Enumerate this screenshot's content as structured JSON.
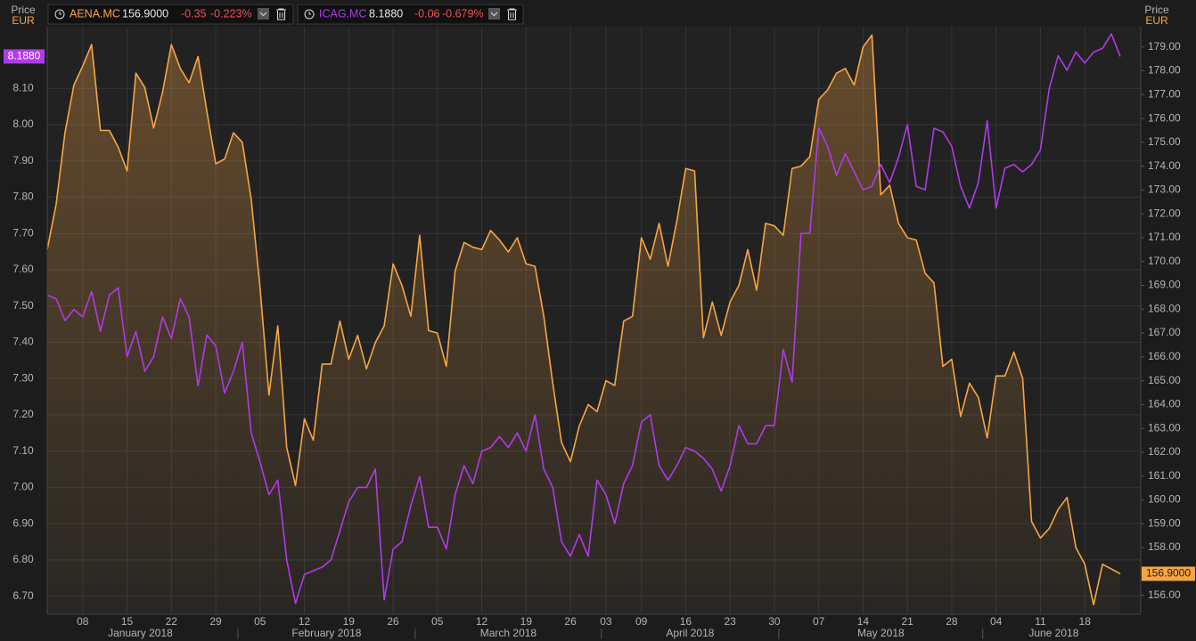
{
  "chart_data": {
    "type": "line",
    "y_label": "Price",
    "y_unit": "EUR",
    "y2_label": "Price",
    "y2_unit": "EUR",
    "x": [
      "2018-01-02",
      "2018-01-03",
      "2018-01-04",
      "2018-01-05",
      "2018-01-08",
      "2018-01-09",
      "2018-01-10",
      "2018-01-11",
      "2018-01-12",
      "2018-01-15",
      "2018-01-16",
      "2018-01-17",
      "2018-01-18",
      "2018-01-19",
      "2018-01-22",
      "2018-01-23",
      "2018-01-24",
      "2018-01-25",
      "2018-01-26",
      "2018-01-29",
      "2018-01-30",
      "2018-01-31",
      "2018-02-01",
      "2018-02-02",
      "2018-02-05",
      "2018-02-06",
      "2018-02-07",
      "2018-02-08",
      "2018-02-09",
      "2018-02-12",
      "2018-02-13",
      "2018-02-14",
      "2018-02-15",
      "2018-02-16",
      "2018-02-19",
      "2018-02-20",
      "2018-02-21",
      "2018-02-22",
      "2018-02-23",
      "2018-02-26",
      "2018-02-27",
      "2018-02-28",
      "2018-03-01",
      "2018-03-02",
      "2018-03-05",
      "2018-03-06",
      "2018-03-07",
      "2018-03-08",
      "2018-03-09",
      "2018-03-12",
      "2018-03-13",
      "2018-03-14",
      "2018-03-15",
      "2018-03-16",
      "2018-03-19",
      "2018-03-20",
      "2018-03-21",
      "2018-03-22",
      "2018-03-23",
      "2018-03-26",
      "2018-03-27",
      "2018-03-28",
      "2018-03-29",
      "2018-04-03",
      "2018-04-04",
      "2018-04-05",
      "2018-04-06",
      "2018-04-09",
      "2018-04-10",
      "2018-04-11",
      "2018-04-12",
      "2018-04-13",
      "2018-04-16",
      "2018-04-17",
      "2018-04-18",
      "2018-04-19",
      "2018-04-20",
      "2018-04-23",
      "2018-04-24",
      "2018-04-25",
      "2018-04-26",
      "2018-04-27",
      "2018-04-30",
      "2018-05-01",
      "2018-05-02",
      "2018-05-03",
      "2018-05-04",
      "2018-05-07",
      "2018-05-08",
      "2018-05-09",
      "2018-05-10",
      "2018-05-11",
      "2018-05-14",
      "2018-05-15",
      "2018-05-16",
      "2018-05-17",
      "2018-05-18",
      "2018-05-21",
      "2018-05-22",
      "2018-05-23",
      "2018-05-24",
      "2018-05-25",
      "2018-05-28",
      "2018-05-29",
      "2018-05-30",
      "2018-05-31",
      "2018-06-01",
      "2018-06-04",
      "2018-06-05",
      "2018-06-06",
      "2018-06-07",
      "2018-06-08",
      "2018-06-11",
      "2018-06-12",
      "2018-06-13",
      "2018-06-14",
      "2018-06-15",
      "2018-06-18",
      "2018-06-19",
      "2018-06-20",
      "2018-06-21",
      "2018-06-22"
    ],
    "xticks": [
      {
        "value": "2018-01-08",
        "label": "08"
      },
      {
        "value": "2018-01-15",
        "label": "15"
      },
      {
        "value": "2018-01-22",
        "label": "22"
      },
      {
        "value": "2018-01-29",
        "label": "29"
      },
      {
        "value": "2018-02-05",
        "label": "05"
      },
      {
        "value": "2018-02-12",
        "label": "12"
      },
      {
        "value": "2018-02-19",
        "label": "19"
      },
      {
        "value": "2018-02-26",
        "label": "26"
      },
      {
        "value": "2018-03-05",
        "label": "05"
      },
      {
        "value": "2018-03-12",
        "label": "12"
      },
      {
        "value": "2018-03-19",
        "label": "19"
      },
      {
        "value": "2018-03-26",
        "label": "26"
      },
      {
        "value": "2018-04-03",
        "label": "03"
      },
      {
        "value": "2018-04-09",
        "label": "09"
      },
      {
        "value": "2018-04-16",
        "label": "16"
      },
      {
        "value": "2018-04-23",
        "label": "23"
      },
      {
        "value": "2018-04-30",
        "label": "30"
      },
      {
        "value": "2018-05-07",
        "label": "07"
      },
      {
        "value": "2018-05-14",
        "label": "14"
      },
      {
        "value": "2018-05-21",
        "label": "21"
      },
      {
        "value": "2018-05-28",
        "label": "28"
      },
      {
        "value": "2018-06-04",
        "label": "04"
      },
      {
        "value": "2018-06-11",
        "label": "11"
      },
      {
        "value": "2018-06-18",
        "label": "18"
      }
    ],
    "months": [
      {
        "value": "2018-01",
        "label": "January 2018"
      },
      {
        "value": "2018-02",
        "label": "February 2018"
      },
      {
        "value": "2018-03",
        "label": "March 2018"
      },
      {
        "value": "2018-04",
        "label": "April 2018"
      },
      {
        "value": "2018-05",
        "label": "May 2018"
      },
      {
        "value": "2018-06",
        "label": "June 2018"
      }
    ],
    "ylim": [
      6.65,
      8.27
    ],
    "yticks": [
      {
        "value": 6.7,
        "label": "6.70"
      },
      {
        "value": 6.8,
        "label": "6.80"
      },
      {
        "value": 6.9,
        "label": "6.90"
      },
      {
        "value": 7.0,
        "label": "7.00"
      },
      {
        "value": 7.1,
        "label": "7.10"
      },
      {
        "value": 7.2,
        "label": "7.20"
      },
      {
        "value": 7.3,
        "label": "7.30"
      },
      {
        "value": 7.4,
        "label": "7.40"
      },
      {
        "value": 7.5,
        "label": "7.50"
      },
      {
        "value": 7.6,
        "label": "7.60"
      },
      {
        "value": 7.7,
        "label": "7.70"
      },
      {
        "value": 7.8,
        "label": "7.80"
      },
      {
        "value": 7.9,
        "label": "7.90"
      },
      {
        "value": 8.0,
        "label": "8.00"
      },
      {
        "value": 8.1,
        "label": "8.10"
      }
    ],
    "y2lim": [
      155.2,
      179.85
    ],
    "y2ticks": [
      {
        "value": 156,
        "label": "156.00"
      },
      {
        "value": 157,
        "label": "157.00"
      },
      {
        "value": 158,
        "label": "158.00"
      },
      {
        "value": 159,
        "label": "159.00"
      },
      {
        "value": 160,
        "label": "160.00"
      },
      {
        "value": 161,
        "label": "161.00"
      },
      {
        "value": 162,
        "label": "162.00"
      },
      {
        "value": 163,
        "label": "163.00"
      },
      {
        "value": 164,
        "label": "164.00"
      },
      {
        "value": 165,
        "label": "165.00"
      },
      {
        "value": 166,
        "label": "166.00"
      },
      {
        "value": 167,
        "label": "167.00"
      },
      {
        "value": 168,
        "label": "168.00"
      },
      {
        "value": 169,
        "label": "169.00"
      },
      {
        "value": 170,
        "label": "170.00"
      },
      {
        "value": 171,
        "label": "171.00"
      },
      {
        "value": 172,
        "label": "172.00"
      },
      {
        "value": 173,
        "label": "173.00"
      },
      {
        "value": 174,
        "label": "174.00"
      },
      {
        "value": 175,
        "label": "175.00"
      },
      {
        "value": 176,
        "label": "176.00"
      },
      {
        "value": 177,
        "label": "177.00"
      },
      {
        "value": 178,
        "label": "178.00"
      },
      {
        "value": 179,
        "label": "179.00"
      }
    ],
    "grid": true,
    "series": [
      {
        "name": "AENA.MC",
        "color": "#f7a544",
        "axis": "y2",
        "area": true,
        "quote": {
          "last": "156.9000",
          "change": "-0.35",
          "change_pct": "-0.223%"
        },
        "values": [
          170.5,
          172.4,
          175.4,
          177.4,
          178.2,
          179.1,
          175.5,
          175.5,
          174.8,
          173.8,
          177.9,
          177.3,
          175.6,
          177.1,
          179.1,
          178.1,
          177.5,
          178.6,
          176.3,
          174.1,
          174.3,
          175.4,
          175.0,
          172.6,
          168.9,
          164.4,
          167.3,
          162.2,
          160.6,
          163.4,
          162.5,
          165.7,
          165.7,
          167.5,
          165.9,
          166.9,
          165.5,
          166.6,
          167.3,
          169.9,
          169.0,
          167.7,
          171.1,
          167.1,
          167.0,
          165.6,
          169.6,
          170.8,
          170.6,
          170.5,
          171.3,
          170.9,
          170.4,
          171.0,
          169.9,
          169.8,
          167.7,
          164.9,
          162.4,
          161.6,
          163.1,
          164.0,
          163.7,
          165.0,
          164.8,
          167.5,
          167.7,
          171.0,
          170.1,
          171.6,
          169.8,
          171.7,
          173.9,
          173.8,
          166.8,
          168.3,
          166.9,
          168.3,
          169.0,
          170.5,
          168.8,
          171.6,
          171.5,
          171.1,
          173.9,
          174.0,
          174.4,
          176.8,
          177.2,
          177.9,
          178.1,
          177.4,
          179.0,
          179.5,
          172.8,
          173.2,
          171.6,
          171.0,
          170.9,
          169.5,
          169.1,
          165.6,
          165.9,
          163.5,
          164.9,
          164.3,
          162.6,
          165.2,
          165.2,
          166.2,
          165.1,
          159.1,
          158.4,
          158.8,
          159.6,
          160.1,
          158.0,
          157.3,
          155.6,
          157.3,
          157.1,
          156.9
        ]
      },
      {
        "name": "ICAG.MC",
        "color": "#b13ae8",
        "axis": "y",
        "area": false,
        "quote": {
          "last": "8.1880",
          "change": "-0.06",
          "change_pct": "-0.679%"
        },
        "values": [
          7.53,
          7.52,
          7.46,
          7.49,
          7.47,
          7.54,
          7.43,
          7.53,
          7.55,
          7.36,
          7.43,
          7.32,
          7.36,
          7.47,
          7.41,
          7.52,
          7.47,
          7.28,
          7.42,
          7.39,
          7.26,
          7.32,
          7.4,
          7.15,
          7.07,
          6.98,
          7.02,
          6.8,
          6.68,
          6.76,
          6.77,
          6.78,
          6.8,
          6.88,
          6.96,
          7.0,
          7.0,
          7.05,
          6.69,
          6.83,
          6.85,
          6.95,
          7.03,
          6.89,
          6.89,
          6.83,
          6.98,
          7.06,
          7.01,
          7.1,
          7.11,
          7.14,
          7.11,
          7.15,
          7.1,
          7.2,
          7.05,
          7.0,
          6.85,
          6.81,
          6.87,
          6.81,
          7.02,
          6.98,
          6.9,
          7.01,
          7.06,
          7.18,
          7.2,
          7.06,
          7.02,
          7.06,
          7.11,
          7.1,
          7.08,
          7.05,
          6.99,
          7.06,
          7.17,
          7.12,
          7.12,
          7.17,
          7.17,
          7.38,
          7.29,
          7.7,
          7.7,
          7.99,
          7.94,
          7.86,
          7.92,
          7.87,
          7.82,
          7.83,
          7.89,
          7.84,
          7.91,
          8.0,
          7.83,
          7.82,
          7.99,
          7.98,
          7.94,
          7.83,
          7.77,
          7.84,
          8.01,
          7.77,
          7.88,
          7.89,
          7.87,
          7.89,
          7.93,
          8.1,
          8.19,
          8.15,
          8.2,
          8.17,
          8.2,
          8.21,
          8.25,
          8.188
        ]
      }
    ]
  }
}
